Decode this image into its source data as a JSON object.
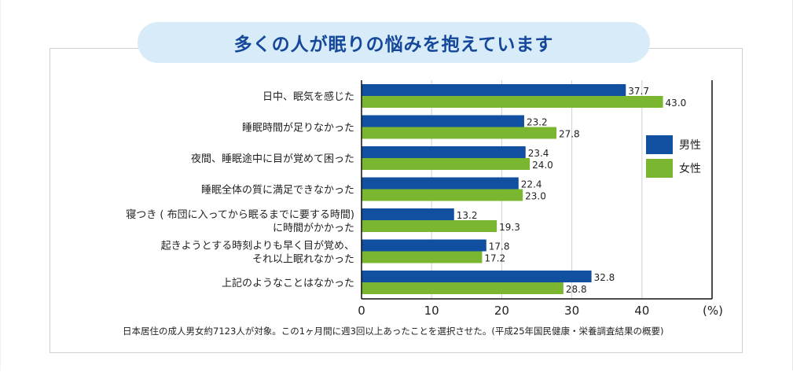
{
  "title": "多くの人が眠りの悩みを抱えています",
  "footnote": "日本居住の成人男女約7123人が対象。この1ヶ月間に週3回以上あったことを選択させた。(平成25年国民健康・栄養調査結果の概要)",
  "chart_data": {
    "type": "bar",
    "orientation": "horizontal",
    "categories": [
      [
        "日中、眠気を感じた"
      ],
      [
        "睡眠時間が足りなかった"
      ],
      [
        "夜間、睡眠途中に目が覚めて困った"
      ],
      [
        "睡眠全体の質に満足できなかった"
      ],
      [
        "寝つき ( 布団に入ってから眠るまでに要する時間)",
        "に時間がかかった"
      ],
      [
        "起きようとする時刻よりも早く目が覚め、",
        "それ以上眠れなかった"
      ],
      [
        "上記のようなことはなかった"
      ]
    ],
    "series": [
      {
        "name": "男性",
        "color": "#114fa0",
        "values": [
          37.7,
          23.2,
          23.4,
          22.4,
          13.2,
          17.8,
          32.8
        ]
      },
      {
        "name": "女性",
        "color": "#7ab630",
        "values": [
          43.0,
          27.8,
          24.0,
          23.0,
          19.3,
          17.2,
          28.8
        ]
      }
    ],
    "value_labels": [
      [
        "37.7",
        "23.2",
        "23.4",
        "22.4",
        "13.2",
        "17.8",
        "32.8"
      ],
      [
        "43.0",
        "27.8",
        "24.0",
        "23.0",
        "19.3",
        "17.2",
        "28.8"
      ]
    ],
    "xticks": [
      "0",
      "10",
      "20",
      "30",
      "40"
    ],
    "xlim": [
      0,
      50
    ],
    "unit_label": "(%)",
    "grid": true,
    "legend_position": "right"
  }
}
